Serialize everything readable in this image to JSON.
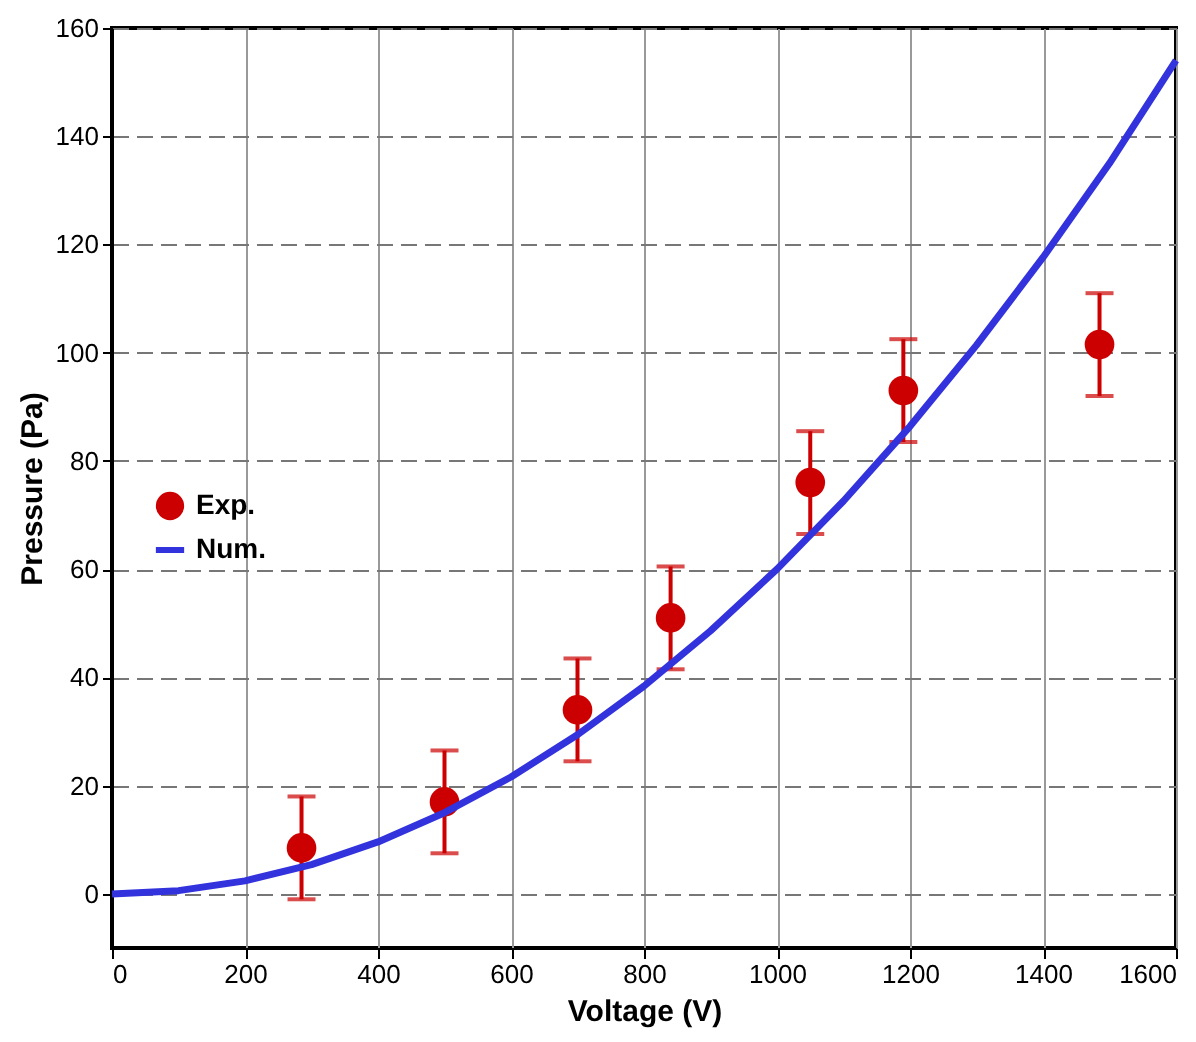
{
  "chart_data": {
    "type": "scatter",
    "xlabel": "Voltage (V)",
    "ylabel": "Pressure (Pa)",
    "xlim": [
      0,
      1600
    ],
    "xticks": [
      0,
      200,
      400,
      600,
      800,
      1000,
      1200,
      1400,
      1600
    ],
    "ylim": [
      -10,
      160
    ],
    "yticks": [
      0,
      20,
      40,
      60,
      80,
      100,
      120,
      140,
      160
    ],
    "grid": true,
    "legend": "left",
    "series": [
      {
        "name": "Exp.",
        "marker": "circle",
        "color": "#cc0000",
        "x": [
          285,
          500,
          700,
          840,
          1050,
          1190,
          1485
        ],
        "values": [
          8.5,
          17,
          34,
          51,
          76,
          93,
          101.5
        ],
        "errors": [
          9.5,
          9.5,
          9.5,
          9.5,
          9.5,
          9.5,
          9.5
        ]
      },
      {
        "name": "Num.",
        "type": "line",
        "marker": "none",
        "color": "#3333dd",
        "line_style": "solid",
        "x": [
          0,
          100,
          200,
          300,
          400,
          500,
          600,
          700,
          800,
          900,
          1000,
          1100,
          1200,
          1300,
          1400,
          1500,
          1600
        ],
        "values": [
          0,
          0.6,
          2.4,
          5.4,
          9.6,
          15,
          21.6,
          29.4,
          38.4,
          48.6,
          60,
          72.6,
          86.4,
          101.4,
          117.6,
          135,
          154
        ]
      }
    ]
  }
}
